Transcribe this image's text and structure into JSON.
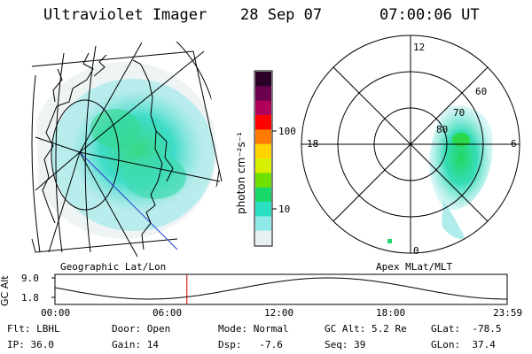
{
  "header": {
    "instrument": "Ultraviolet Imager",
    "date": "28 Sep 07",
    "time": "07:00:06 UT"
  },
  "colorbar": {
    "unit_label": "photon cm⁻²s⁻¹",
    "ticks": [
      "100",
      "10"
    ],
    "colors": [
      "#2a0028",
      "#6b0050",
      "#b0005a",
      "#ff0000",
      "#ff7a00",
      "#ffd200",
      "#d8f000",
      "#6fe000",
      "#18d86a",
      "#29e0c2",
      "#8fe8e8",
      "#e9f2f2"
    ]
  },
  "left_map": {
    "label": "Geographic Lat/Lon"
  },
  "right_map": {
    "label": "Apex MLat/MLT",
    "mlt_labels": {
      "top": "12",
      "left": "18",
      "right": "6",
      "bottom": "0"
    },
    "lat_labels": [
      "60",
      "70",
      "80"
    ]
  },
  "altitude_plot": {
    "ylabel": "GC Alt",
    "yticks": [
      "9.0",
      "1.8"
    ],
    "xticks": [
      "00:00",
      "06:00",
      "12:00",
      "18:00",
      "23:59"
    ],
    "marker_time": "07:00:06"
  },
  "info": {
    "flt": "Flt: LBHL",
    "ip": "IP: 36.0",
    "door": "Door: Open",
    "gain": "Gain: 14",
    "mode": "Mode: Normal",
    "dsp": "Dsp:   -7.6",
    "gc_alt": "GC Alt: 5.2 Re",
    "seq": "Seq: 39",
    "glat": "GLat:  -78.5",
    "glon": "GLon:  37.4"
  }
}
